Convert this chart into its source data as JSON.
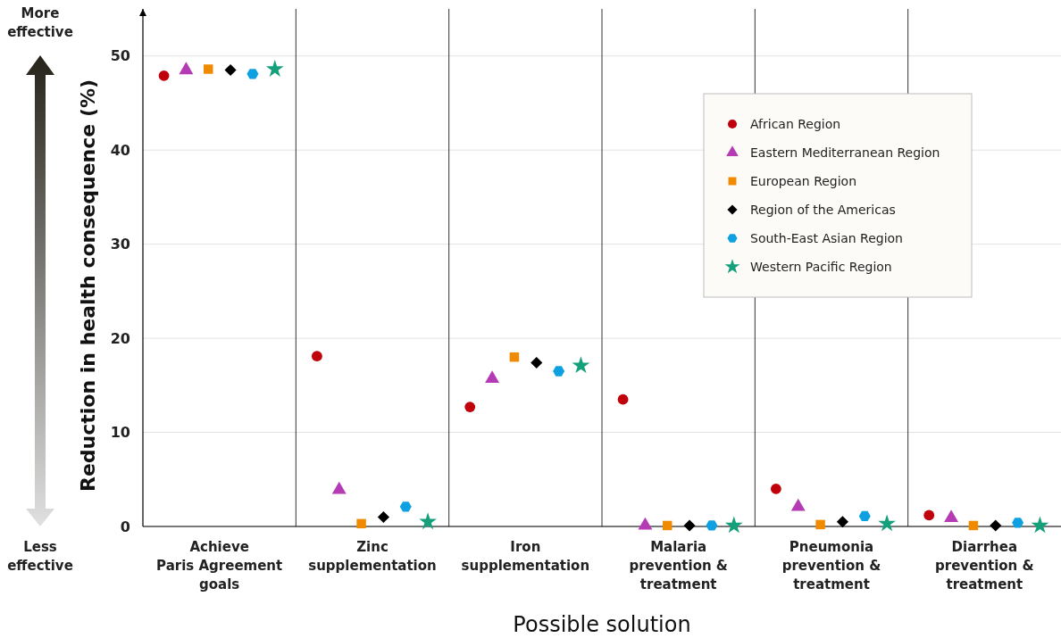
{
  "chart_data": {
    "type": "scatter",
    "xlabel": "Possible solution",
    "ylabel": "Reduction in health consequence (%)",
    "categories": [
      "Achieve\nParis Agreement\ngoals",
      "Zinc\nsupplementation",
      "Iron\nsupplementation",
      "Malaria\nprevention &\ntreatment",
      "Pneumonia\nprevention &\ntreatment",
      "Diarrhea\nprevention &\ntreatment"
    ],
    "ylim": [
      0,
      55
    ],
    "yticks": [
      0,
      10,
      20,
      30,
      40,
      50
    ],
    "grid": "y",
    "legend": "top right",
    "annotations": [
      "More\neffective",
      "Less\neffective"
    ],
    "series": [
      {
        "name": "African Region",
        "color": "#c0000b",
        "marker": "circle",
        "values": [
          47.9,
          18.1,
          12.7,
          13.5,
          4.0,
          1.2
        ]
      },
      {
        "name": "Eastern Mediterranean Region",
        "color": "#b43bb4",
        "marker": "triangle",
        "values": [
          48.5,
          3.9,
          15.7,
          0.1,
          2.1,
          0.9
        ]
      },
      {
        "name": "European Region",
        "color": "#f08a00",
        "marker": "square",
        "values": [
          48.6,
          0.3,
          18.0,
          0.1,
          0.2,
          0.1
        ]
      },
      {
        "name": "Region of the Americas",
        "color": "#000000",
        "marker": "diamond",
        "values": [
          48.5,
          1.0,
          17.4,
          0.1,
          0.5,
          0.1
        ]
      },
      {
        "name": "South-East Asian Region",
        "color": "#0ea0e0",
        "values": [
          48.1,
          2.1,
          16.5,
          0.1,
          1.1,
          0.4
        ]
      },
      {
        "name": "Western Pacific Region",
        "color": "#13a07a",
        "marker": "star",
        "values": [
          48.6,
          0.5,
          17.1,
          0.1,
          0.3,
          0.1
        ]
      }
    ]
  }
}
